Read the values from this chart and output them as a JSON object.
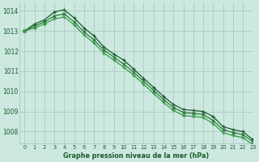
{
  "title": "Graphe pression niveau de la mer (hPa)",
  "background_color": "#cce8e0",
  "grid_color": "#aaccbb",
  "line_color_1": "#1a5c2a",
  "line_color_2": "#2d7a3a",
  "line_color_3": "#3a9948",
  "xlim": [
    -0.5,
    23
  ],
  "ylim": [
    1007.4,
    1014.4
  ],
  "yticks": [
    1008,
    1009,
    1010,
    1011,
    1012,
    1013,
    1014
  ],
  "xticks": [
    0,
    1,
    2,
    3,
    4,
    5,
    6,
    7,
    8,
    9,
    10,
    11,
    12,
    13,
    14,
    15,
    16,
    17,
    18,
    19,
    20,
    21,
    22,
    23
  ],
  "series": [
    [
      1013.0,
      1013.35,
      1013.55,
      1013.95,
      1014.05,
      1013.65,
      1013.15,
      1012.75,
      1012.2,
      1011.85,
      1011.55,
      1011.1,
      1010.65,
      1010.2,
      1009.75,
      1009.35,
      1009.1,
      1009.05,
      1009.0,
      1008.75,
      1008.25,
      1008.1,
      1008.0,
      1007.6
    ],
    [
      1013.0,
      1013.25,
      1013.45,
      1013.75,
      1013.85,
      1013.45,
      1012.95,
      1012.55,
      1012.05,
      1011.7,
      1011.35,
      1010.95,
      1010.5,
      1010.05,
      1009.6,
      1009.2,
      1008.95,
      1008.9,
      1008.85,
      1008.55,
      1008.1,
      1007.95,
      1007.85,
      1007.5
    ],
    [
      1013.0,
      1013.15,
      1013.35,
      1013.6,
      1013.7,
      1013.3,
      1012.8,
      1012.4,
      1011.9,
      1011.55,
      1011.2,
      1010.8,
      1010.35,
      1009.9,
      1009.45,
      1009.05,
      1008.8,
      1008.75,
      1008.7,
      1008.4,
      1007.95,
      1007.8,
      1007.7,
      1007.35
    ]
  ]
}
